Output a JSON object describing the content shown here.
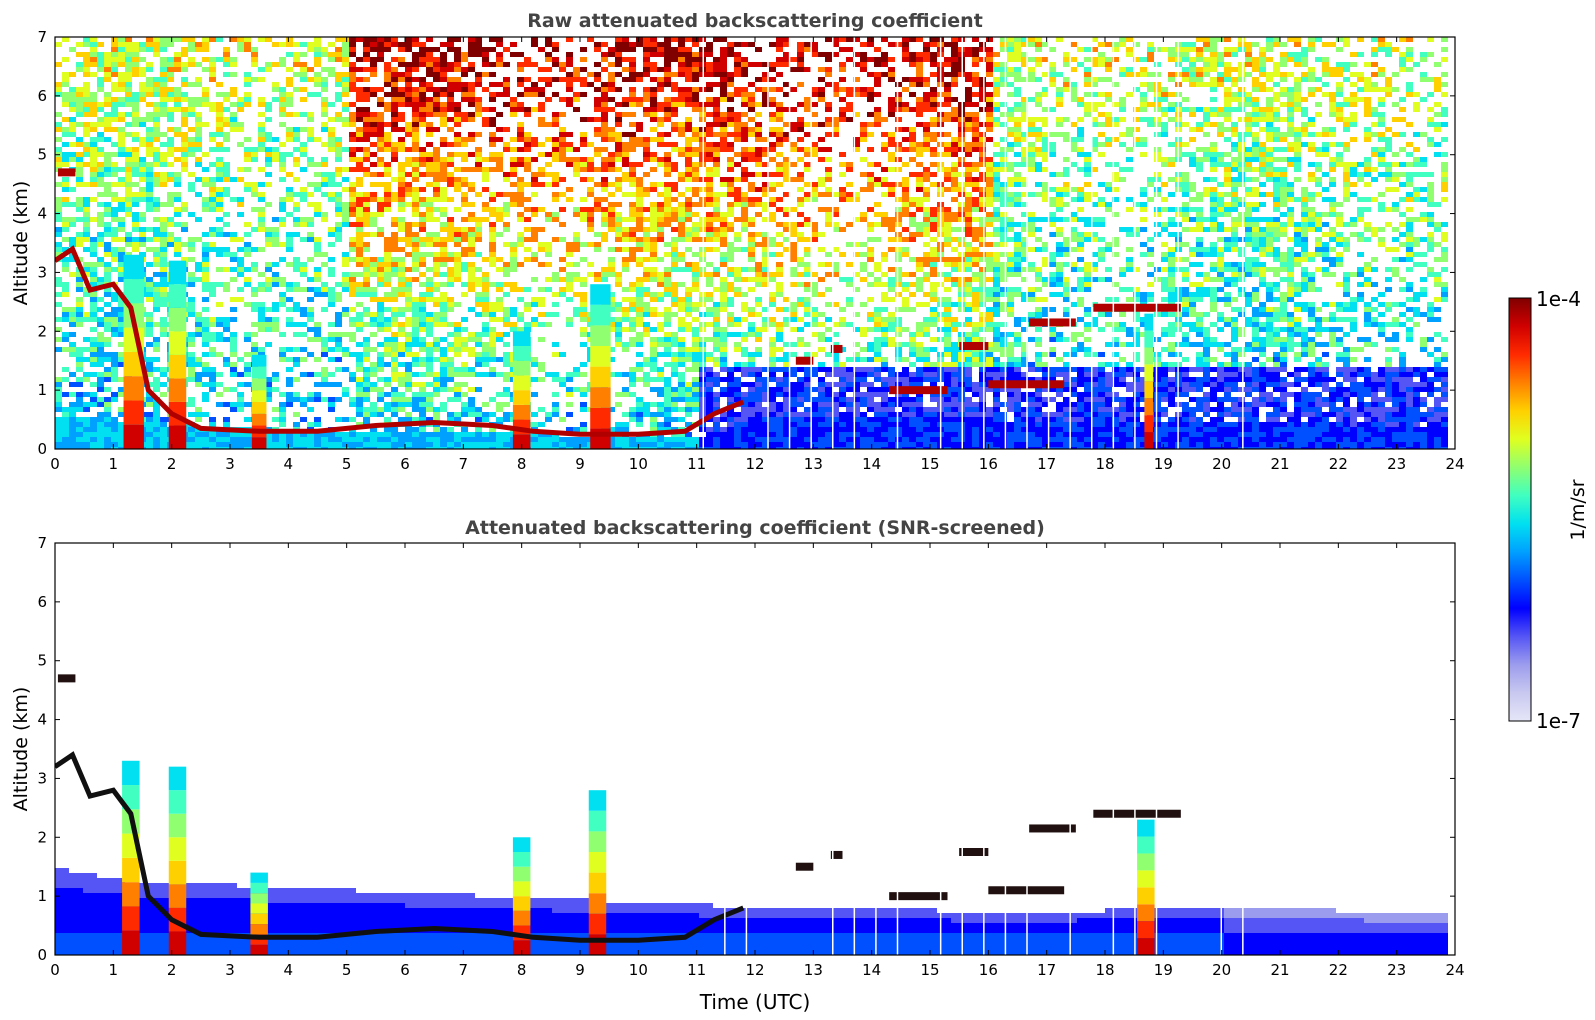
{
  "chart_data": [
    {
      "type": "heatmap",
      "title": "Raw attenuated backscattering coefficient",
      "xlabel": "",
      "ylabel": "Altitude (km)",
      "xlim": [
        0,
        24
      ],
      "ylim": [
        0,
        7
      ],
      "x_ticks": [
        "0",
        "1",
        "2",
        "3",
        "4",
        "5",
        "6",
        "7",
        "8",
        "9",
        "10",
        "11",
        "12",
        "13",
        "14",
        "15",
        "16",
        "17",
        "18",
        "19",
        "20",
        "21",
        "22",
        "23",
        "24"
      ],
      "y_ticks": [
        "0",
        "1",
        "2",
        "3",
        "4",
        "5",
        "6",
        "7"
      ],
      "data_end_time": 23.8,
      "noise_fill": true,
      "features": {
        "surface_layer": [
          [
            0,
            0.55
          ],
          [
            1,
            0.55
          ],
          [
            1.2,
            0.5
          ],
          [
            2,
            0.45
          ],
          [
            4,
            0.35
          ],
          [
            6,
            0.3
          ],
          [
            8,
            0.3
          ],
          [
            10,
            0.25
          ],
          [
            11,
            0.2
          ],
          [
            12,
            0.6
          ],
          [
            14,
            0.6
          ],
          [
            16,
            0.55
          ],
          [
            18,
            0.5
          ],
          [
            20,
            0.5
          ],
          [
            22,
            0.45
          ],
          [
            23.8,
            0.45
          ]
        ],
        "cloud_base_trace": [
          [
            0,
            3.2
          ],
          [
            0.3,
            3.4
          ],
          [
            0.6,
            2.7
          ],
          [
            1.0,
            2.8
          ],
          [
            1.3,
            2.4
          ],
          [
            1.6,
            1.0
          ],
          [
            2.0,
            0.6
          ],
          [
            2.5,
            0.35
          ],
          [
            3.5,
            0.3
          ],
          [
            4.5,
            0.3
          ],
          [
            5.5,
            0.4
          ],
          [
            6.5,
            0.45
          ],
          [
            7.5,
            0.4
          ],
          [
            8.2,
            0.3
          ],
          [
            9,
            0.25
          ],
          [
            10,
            0.25
          ],
          [
            10.8,
            0.3
          ],
          [
            11.3,
            0.6
          ],
          [
            11.8,
            0.8
          ]
        ],
        "high_clouds": [
          {
            "t0": 0.05,
            "t1": 0.35,
            "z": 4.7
          },
          {
            "t0": 12.7,
            "t1": 13.0,
            "z": 1.5
          },
          {
            "t0": 13.3,
            "t1": 13.5,
            "z": 1.7
          },
          {
            "t0": 14.3,
            "t1": 15.3,
            "z": 1.0
          },
          {
            "t0": 15.5,
            "t1": 16.0,
            "z": 1.75
          },
          {
            "t0": 16.0,
            "t1": 17.3,
            "z": 1.1
          },
          {
            "t0": 16.7,
            "t1": 17.5,
            "z": 2.15
          },
          {
            "t0": 17.8,
            "t1": 19.3,
            "z": 2.4
          }
        ],
        "precip_columns": [
          {
            "t": 1.35,
            "w": 0.35,
            "top": 3.3
          },
          {
            "t": 2.1,
            "w": 0.3,
            "top": 3.2
          },
          {
            "t": 3.5,
            "w": 0.25,
            "top": 1.6
          },
          {
            "t": 8.0,
            "w": 0.3,
            "top": 2.0
          },
          {
            "t": 9.35,
            "w": 0.35,
            "top": 2.8
          },
          {
            "t": 18.75,
            "w": 0.15,
            "top": 2.3
          }
        ]
      },
      "colormap": "jet"
    },
    {
      "type": "heatmap",
      "title": "Attenuated backscattering coefficient (SNR-screened)",
      "xlabel": "Time (UTC)",
      "ylabel": "Altitude (km)",
      "xlim": [
        0,
        24
      ],
      "ylim": [
        0,
        7
      ],
      "x_ticks": [
        "0",
        "1",
        "2",
        "3",
        "4",
        "5",
        "6",
        "7",
        "8",
        "9",
        "10",
        "11",
        "12",
        "13",
        "14",
        "15",
        "16",
        "17",
        "18",
        "19",
        "20",
        "21",
        "22",
        "23",
        "24"
      ],
      "y_ticks": [
        "0",
        "1",
        "2",
        "3",
        "4",
        "5",
        "6",
        "7"
      ],
      "data_end_time": 23.8,
      "noise_fill": false,
      "features": {
        "boundary_layer_top": [
          [
            0,
            1.5
          ],
          [
            1.2,
            1.3
          ],
          [
            12,
            0.85
          ],
          [
            14,
            0.85
          ],
          [
            16,
            0.75
          ],
          [
            18,
            0.8
          ],
          [
            20,
            0.85
          ],
          [
            23.8,
            0.75
          ]
        ],
        "screened_precip_tops": [
          [
            1.3,
            3.3
          ],
          [
            2.1,
            3.2
          ],
          [
            3.5,
            1.4
          ],
          [
            8.0,
            2.0
          ],
          [
            9.3,
            2.8
          ],
          [
            18.7,
            2.3
          ]
        ]
      },
      "colormap": "jet"
    }
  ],
  "colorbar": {
    "top_label": "1e-4",
    "bottom_label": "1e-7",
    "unit_label": "1/m/sr",
    "scale": "log",
    "range": [
      1e-07,
      0.0001
    ],
    "colors": [
      "#e6e6f8",
      "#c8c8f0",
      "#9c9cee",
      "#5555f5",
      "#0000ff",
      "#0050ff",
      "#00a0ff",
      "#00e0f0",
      "#40ffc0",
      "#90ff70",
      "#e0ff20",
      "#ffd000",
      "#ff8000",
      "#ff2a00",
      "#d00000",
      "#800000"
    ]
  }
}
